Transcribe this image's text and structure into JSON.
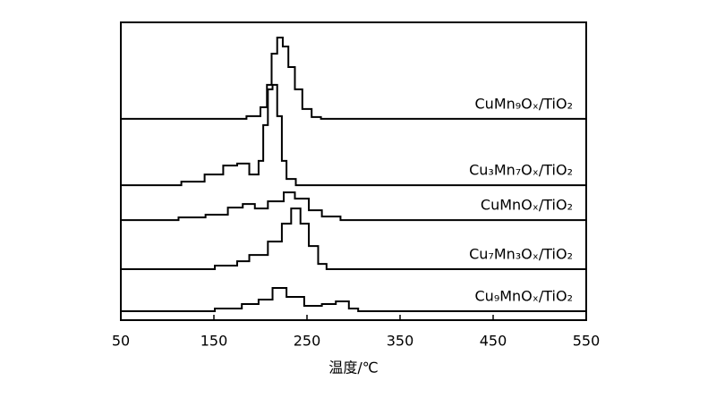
{
  "chart_data": {
    "type": "line",
    "x_label": "温度/℃",
    "xlim": [
      50,
      550
    ],
    "xticks": [
      50,
      150,
      250,
      350,
      450,
      550
    ],
    "ylim": [
      0,
      100
    ],
    "color": "#000000",
    "series": [
      {
        "name": "CuMn₉Oₓ/TiO₂",
        "x": [
          50,
          170,
          185,
          200,
          207,
          212,
          218,
          224,
          230,
          237,
          245,
          255,
          265,
          550
        ],
        "values": [
          67.6,
          67.6,
          68.5,
          71.5,
          79.0,
          89.5,
          94.9,
          91.9,
          85.0,
          77.5,
          70.9,
          68.2,
          67.6,
          67.6
        ]
      },
      {
        "name": "Cu₃Mn₇Oₓ/TiO₂",
        "x": [
          50,
          115,
          140,
          160,
          175,
          188,
          198,
          203,
          208,
          213,
          218,
          223,
          228,
          238,
          550
        ],
        "values": [
          45.3,
          46.5,
          48.9,
          51.9,
          52.6,
          48.9,
          53.5,
          65.5,
          77.5,
          79.0,
          68.5,
          53.5,
          47.4,
          45.3,
          45.3
        ]
      },
      {
        "name": "CuMnOₓ/TiO₂",
        "x": [
          50,
          112,
          141,
          165,
          181,
          194,
          208,
          225,
          237,
          252,
          266,
          286,
          550
        ],
        "values": [
          33.6,
          34.5,
          35.4,
          37.8,
          39.0,
          37.5,
          39.9,
          42.9,
          40.8,
          36.9,
          34.8,
          33.6,
          33.6
        ]
      },
      {
        "name": "Cu₇Mn₃Oₓ/TiO₂",
        "x": [
          50,
          112,
          151,
          175,
          188,
          208,
          223,
          233,
          243,
          252,
          262,
          271,
          550
        ],
        "values": [
          17.1,
          17.1,
          18.3,
          19.8,
          21.9,
          26.4,
          32.4,
          37.5,
          32.4,
          24.9,
          18.9,
          17.1,
          17.1
        ]
      },
      {
        "name": "Cu₉MnOₓ/TiO₂",
        "x": [
          50,
          151,
          180,
          198,
          213,
          228,
          247,
          266,
          281,
          295,
          305,
          550
        ],
        "values": [
          3.0,
          3.9,
          5.4,
          6.9,
          10.8,
          7.8,
          4.8,
          5.4,
          6.3,
          3.9,
          3.0,
          3.0
        ]
      }
    ]
  }
}
